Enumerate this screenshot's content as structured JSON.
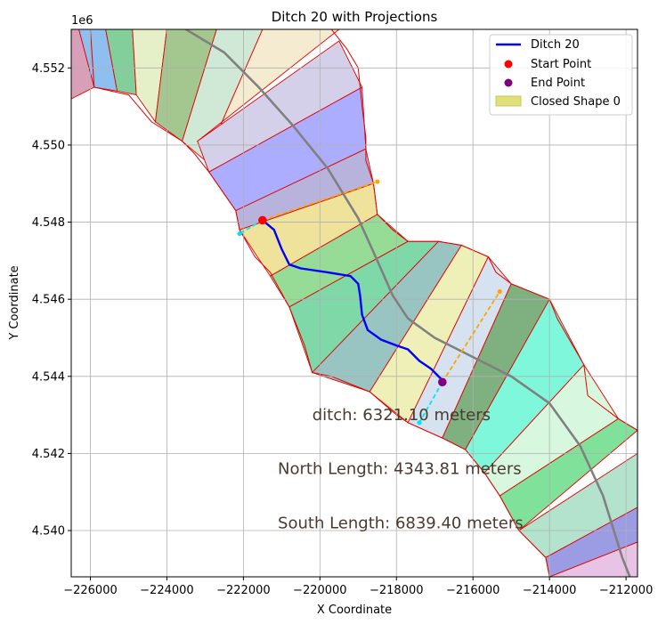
{
  "chart_data": {
    "type": "line",
    "title": "Ditch 20 with Projections",
    "xlabel": "X Coordinate",
    "ylabel": "Y Coordinate",
    "y_offset_label": "1e6",
    "xlim": [
      -226500,
      -211700
    ],
    "ylim": [
      4538.8,
      4553.0
    ],
    "y_display_scale": "values in thousands of meters shown as 1e6 offset (4.540 = 4540000)",
    "grid": true,
    "legend_position": "top-right",
    "x_ticks": [
      -226000,
      -224000,
      -222000,
      -220000,
      -218000,
      -216000,
      -214000,
      -212000
    ],
    "x_tick_labels": [
      "−226000",
      "−224000",
      "−222000",
      "−220000",
      "−218000",
      "−216000",
      "−214000",
      "−212000"
    ],
    "y_ticks": [
      4540,
      4542,
      4544,
      4546,
      4548,
      4550,
      4552
    ],
    "y_tick_labels": [
      "4.540",
      "4.542",
      "4.544",
      "4.546",
      "4.548",
      "4.550",
      "4.552"
    ],
    "legend": [
      {
        "label": "Ditch 20",
        "kind": "line",
        "color": "#0000ff"
      },
      {
        "label": "Start Point",
        "kind": "marker",
        "color": "#ff0000"
      },
      {
        "label": "End Point",
        "kind": "marker",
        "color": "#800080"
      },
      {
        "label": "Closed Shape 0",
        "kind": "patch",
        "color": "#e0df7a"
      }
    ],
    "annotations": [
      {
        "text": "ditch: 6321.10 meters",
        "x": -220200,
        "y": 4543.0
      },
      {
        "text": "North Length: 4343.81 meters",
        "x": -221100,
        "y": 4541.6
      },
      {
        "text": "South Length: 6839.40 meters",
        "x": -221100,
        "y": 4540.2
      }
    ],
    "shape_boundary": {
      "left": [
        [
          -226300,
          4553.0
        ],
        [
          -226000,
          4553.0
        ],
        [
          -225900,
          4551.5
        ],
        [
          -225000,
          4551.3
        ],
        [
          -224400,
          4550.6
        ],
        [
          -223600,
          4550.1
        ],
        [
          -223300,
          4549.8
        ],
        [
          -222900,
          4549.3
        ],
        [
          -222200,
          4548.3
        ],
        [
          -222100,
          4547.8
        ],
        [
          -221700,
          4547.1
        ],
        [
          -221300,
          4546.7
        ],
        [
          -220800,
          4545.8
        ],
        [
          -220400,
          4544.8
        ],
        [
          -220200,
          4544.1
        ],
        [
          -219700,
          4544.0
        ],
        [
          -218700,
          4543.6
        ],
        [
          -218000,
          4543.0
        ],
        [
          -217700,
          4542.8
        ],
        [
          -216800,
          4542.4
        ],
        [
          -216200,
          4542.1
        ],
        [
          -215700,
          4541.5
        ],
        [
          -215300,
          4540.9
        ],
        [
          -214800,
          4540.0
        ],
        [
          -214100,
          4539.3
        ],
        [
          -214000,
          4538.8
        ]
      ],
      "right": [
        [
          -211700,
          4538.8
        ],
        [
          -211700,
          4542.6
        ],
        [
          -212200,
          4542.9
        ],
        [
          -213000,
          4543.5
        ],
        [
          -213100,
          4544.3
        ],
        [
          -213800,
          4545.5
        ],
        [
          -214000,
          4546.0
        ],
        [
          -215000,
          4546.4
        ],
        [
          -215400,
          4546.7
        ],
        [
          -215600,
          4547.1
        ],
        [
          -216300,
          4547.4
        ],
        [
          -216900,
          4547.5
        ],
        [
          -217700,
          4547.5
        ],
        [
          -218100,
          4547.8
        ],
        [
          -218500,
          4548.2
        ],
        [
          -218600,
          4549.0
        ],
        [
          -218800,
          4549.6
        ],
        [
          -218800,
          4550.2
        ],
        [
          -218900,
          4551.0
        ],
        [
          -219000,
          4552.0
        ],
        [
          -219300,
          4552.5
        ],
        [
          -219700,
          4553.0
        ]
      ]
    },
    "bands": [
      {
        "color": "#d8a0b8",
        "a": [
          -226500,
          4553.0
        ],
        "b": [
          -226300,
          4553.0
        ],
        "c": [
          -225900,
          4551.5
        ],
        "d": [
          -226500,
          4551.2
        ]
      },
      {
        "color": "#8fbfef",
        "a": [
          -226300,
          4553.0
        ],
        "b": [
          -225600,
          4553.0
        ],
        "c": [
          -225300,
          4551.4
        ],
        "d": [
          -225900,
          4551.5
        ]
      },
      {
        "color": "#82cf9c",
        "a": [
          -225600,
          4553.0
        ],
        "b": [
          -224900,
          4553.0
        ],
        "c": [
          -224800,
          4551.3
        ],
        "d": [
          -225300,
          4551.4
        ]
      },
      {
        "color": "#e6f0c8",
        "a": [
          -224900,
          4553.0
        ],
        "b": [
          -224000,
          4553.0
        ],
        "c": [
          -224300,
          4550.6
        ],
        "d": [
          -224800,
          4551.3
        ]
      },
      {
        "color": "#a3c78f",
        "a": [
          -224000,
          4553.0
        ],
        "b": [
          -222700,
          4553.0
        ],
        "c": [
          -223600,
          4550.1
        ],
        "d": [
          -224300,
          4550.6
        ]
      },
      {
        "color": "#cfe9d6",
        "a": [
          -222700,
          4553.0
        ],
        "b": [
          -221500,
          4553.0
        ],
        "c": [
          -223000,
          4549.6
        ],
        "d": [
          -223600,
          4550.1
        ]
      },
      {
        "color": "#f5ebd0",
        "a": [
          -221500,
          4553.0
        ],
        "b": [
          -219500,
          4553.0
        ],
        "c": [
          -223200,
          4550.1
        ],
        "d": [
          -223000,
          4549.6
        ]
      },
      {
        "color": "#d4d0ea",
        "a": [
          -219500,
          4552.7
        ],
        "b": [
          -218900,
          4551.5
        ],
        "c": [
          -222900,
          4549.3
        ],
        "d": [
          -223200,
          4550.1
        ]
      },
      {
        "color": "#adadff",
        "a": [
          -218900,
          4551.5
        ],
        "b": [
          -218800,
          4549.9
        ],
        "c": [
          -222200,
          4548.3
        ],
        "d": [
          -222900,
          4549.3
        ]
      },
      {
        "color": "#b8b3dc",
        "a": [
          -218800,
          4549.9
        ],
        "b": [
          -218600,
          4549.0
        ],
        "c": [
          -222100,
          4547.8
        ],
        "d": [
          -222200,
          4548.3
        ]
      },
      {
        "color": "#efe29a",
        "a": [
          -218600,
          4549.0
        ],
        "b": [
          -218500,
          4548.2
        ],
        "c": [
          -221300,
          4546.6
        ],
        "d": [
          -222100,
          4547.8
        ]
      },
      {
        "color": "#96dc96",
        "a": [
          -218500,
          4548.2
        ],
        "b": [
          -217700,
          4547.5
        ],
        "c": [
          -220800,
          4545.8
        ],
        "d": [
          -221300,
          4546.6
        ]
      },
      {
        "color": "#7fd8a8",
        "a": [
          -217700,
          4547.5
        ],
        "b": [
          -216900,
          4547.5
        ],
        "c": [
          -220200,
          4544.1
        ],
        "d": [
          -220800,
          4545.8
        ]
      },
      {
        "color": "#98c5c1",
        "a": [
          -216900,
          4547.5
        ],
        "b": [
          -216300,
          4547.4
        ],
        "c": [
          -218700,
          4543.6
        ],
        "d": [
          -220200,
          4544.1
        ]
      },
      {
        "color": "#eef0b8",
        "a": [
          -216300,
          4547.4
        ],
        "b": [
          -215600,
          4547.1
        ],
        "c": [
          -217700,
          4542.8
        ],
        "d": [
          -218700,
          4543.6
        ]
      },
      {
        "color": "#d6e2f0",
        "a": [
          -215600,
          4547.1
        ],
        "b": [
          -215000,
          4546.4
        ],
        "c": [
          -216800,
          4542.4
        ],
        "d": [
          -217700,
          4542.8
        ]
      },
      {
        "color": "#7fb07f",
        "a": [
          -215000,
          4546.4
        ],
        "b": [
          -214000,
          4546.0
        ],
        "c": [
          -216200,
          4542.1
        ],
        "d": [
          -216800,
          4542.4
        ]
      },
      {
        "color": "#7ff7db",
        "a": [
          -214000,
          4546.0
        ],
        "b": [
          -213100,
          4544.3
        ],
        "c": [
          -215700,
          4541.5
        ],
        "d": [
          -216200,
          4542.1
        ]
      },
      {
        "color": "#d8f7df",
        "a": [
          -213100,
          4544.3
        ],
        "b": [
          -212200,
          4542.9
        ],
        "c": [
          -215300,
          4540.9
        ],
        "d": [
          -215700,
          4541.5
        ]
      },
      {
        "color": "#80e19a",
        "a": [
          -212200,
          4542.9
        ],
        "b": [
          -211700,
          4542.6
        ],
        "c": [
          -214800,
          4540.0
        ],
        "d": [
          -215300,
          4540.9
        ]
      },
      {
        "color": "#b3e3cc",
        "a": [
          -211700,
          4542.0
        ],
        "b": [
          -211700,
          4540.6
        ],
        "c": [
          -214100,
          4539.3
        ],
        "d": [
          -214800,
          4540.0
        ]
      },
      {
        "color": "#9c9ce4",
        "a": [
          -211700,
          4540.6
        ],
        "b": [
          -211700,
          4539.7
        ],
        "c": [
          -214000,
          4538.8
        ],
        "d": [
          -214100,
          4539.3
        ]
      },
      {
        "color": "#e9c3e5",
        "a": [
          -211700,
          4539.7
        ],
        "b": [
          -211700,
          4538.8
        ],
        "c": [
          -214000,
          4538.8
        ],
        "d": [
          -214000,
          4538.8
        ]
      }
    ],
    "centerline": {
      "color": "#808080",
      "points": [
        [
          -223500,
          4553.0
        ],
        [
          -222500,
          4552.4
        ],
        [
          -221600,
          4551.5
        ],
        [
          -220700,
          4550.5
        ],
        [
          -219800,
          4549.4
        ],
        [
          -219000,
          4548.1
        ],
        [
          -218500,
          4547.0
        ],
        [
          -218100,
          4546.1
        ],
        [
          -217700,
          4545.5
        ],
        [
          -217000,
          4545.0
        ],
        [
          -216000,
          4544.5
        ],
        [
          -215000,
          4544.0
        ],
        [
          -214000,
          4543.3
        ],
        [
          -213200,
          4542.2
        ],
        [
          -212600,
          4540.9
        ],
        [
          -212100,
          4539.3
        ],
        [
          -211900,
          4538.8
        ]
      ]
    },
    "ditch": {
      "name": "Ditch 20",
      "color": "#0000ff",
      "points": [
        [
          -221500,
          4548.05
        ],
        [
          -221200,
          4547.8
        ],
        [
          -221000,
          4547.3
        ],
        [
          -220800,
          4546.9
        ],
        [
          -220500,
          4546.8
        ],
        [
          -219800,
          4546.7
        ],
        [
          -219200,
          4546.6
        ],
        [
          -219000,
          4546.4
        ],
        [
          -218950,
          4546.1
        ],
        [
          -218900,
          4545.6
        ],
        [
          -218750,
          4545.2
        ],
        [
          -218400,
          4544.95
        ],
        [
          -218000,
          4544.8
        ],
        [
          -217700,
          4544.7
        ],
        [
          -217400,
          4544.4
        ],
        [
          -217100,
          4544.2
        ],
        [
          -216800,
          4543.9
        ]
      ]
    },
    "start_point": {
      "label": "Start Point",
      "x": -221500,
      "y": 4548.05,
      "color": "#ff0000"
    },
    "end_point": {
      "label": "End Point",
      "x": -216800,
      "y": 4543.85,
      "color": "#800080"
    },
    "projections": [
      {
        "color": "#ffa500",
        "from": [
          -221500,
          4548.05
        ],
        "to": [
          -218500,
          4549.05
        ]
      },
      {
        "color": "#00e5ff",
        "from": [
          -221500,
          4548.05
        ],
        "to": [
          -222100,
          4547.7
        ]
      },
      {
        "color": "#ffa500",
        "from": [
          -216800,
          4543.85
        ],
        "to": [
          -215300,
          4546.2
        ]
      },
      {
        "color": "#00e5ff",
        "from": [
          -216800,
          4543.85
        ],
        "to": [
          -217400,
          4542.8
        ]
      }
    ]
  }
}
